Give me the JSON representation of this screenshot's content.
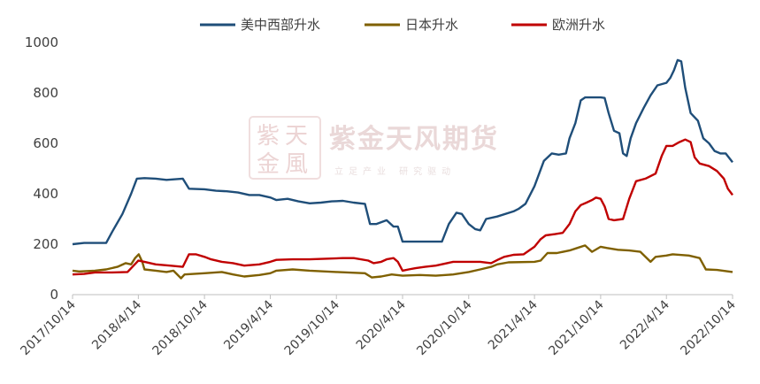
{
  "watermark": {
    "name": "紫金天风期货",
    "tagline": "立足产业 研究驱动",
    "logo_chars": [
      "紫",
      "天",
      "金",
      "風"
    ]
  },
  "chart_data": {
    "type": "line",
    "title": "",
    "xlabel": "",
    "ylabel": "",
    "ylim": [
      0,
      1000
    ],
    "yticks": [
      0,
      200,
      400,
      600,
      800,
      1000
    ],
    "xticks": [
      "2017/10/14",
      "2018/4/14",
      "2018/10/14",
      "2019/4/14",
      "2019/10/14",
      "2020/4/14",
      "2020/10/14",
      "2021/4/14",
      "2021/10/14",
      "2022/4/14",
      "2022/10/14"
    ],
    "legend_position": "top",
    "grid": false,
    "series": [
      {
        "name": "美中西部升水",
        "color": "#1f4e79",
        "points": [
          [
            "2017/10/14",
            200
          ],
          [
            "2017/11/15",
            205
          ],
          [
            "2018/1/15",
            205
          ],
          [
            "2018/2/1",
            250
          ],
          [
            "2018/3/1",
            320
          ],
          [
            "2018/3/25",
            400
          ],
          [
            "2018/4/10",
            460
          ],
          [
            "2018/5/1",
            462
          ],
          [
            "2018/6/1",
            460
          ],
          [
            "2018/7/1",
            455
          ],
          [
            "2018/8/15",
            460
          ],
          [
            "2018/9/1",
            420
          ],
          [
            "2018/10/14",
            418
          ],
          [
            "2018/11/15",
            412
          ],
          [
            "2018/12/15",
            410
          ],
          [
            "2019/1/15",
            405
          ],
          [
            "2019/2/15",
            395
          ],
          [
            "2019/3/15",
            395
          ],
          [
            "2019/4/15",
            385
          ],
          [
            "2019/5/1",
            375
          ],
          [
            "2019/6/1",
            380
          ],
          [
            "2019/7/1",
            370
          ],
          [
            "2019/8/1",
            362
          ],
          [
            "2019/9/1",
            365
          ],
          [
            "2019/10/1",
            370
          ],
          [
            "2019/11/1",
            372
          ],
          [
            "2019/12/1",
            365
          ],
          [
            "2020/1/1",
            360
          ],
          [
            "2020/1/15",
            280
          ],
          [
            "2020/2/1",
            280
          ],
          [
            "2020/3/1",
            295
          ],
          [
            "2020/3/20",
            270
          ],
          [
            "2020/4/1",
            270
          ],
          [
            "2020/4/14",
            210
          ],
          [
            "2020/5/1",
            210
          ],
          [
            "2020/8/1",
            210
          ],
          [
            "2020/8/20",
            280
          ],
          [
            "2020/9/10",
            325
          ],
          [
            "2020/9/25",
            320
          ],
          [
            "2020/10/14",
            280
          ],
          [
            "2020/11/1",
            260
          ],
          [
            "2020/11/15",
            255
          ],
          [
            "2020/12/1",
            300
          ],
          [
            "2021/1/1",
            310
          ],
          [
            "2021/2/15",
            330
          ],
          [
            "2021/3/1",
            340
          ],
          [
            "2021/3/20",
            360
          ],
          [
            "2021/4/14",
            430
          ],
          [
            "2021/5/10",
            530
          ],
          [
            "2021/6/1",
            560
          ],
          [
            "2021/6/20",
            555
          ],
          [
            "2021/7/10",
            560
          ],
          [
            "2021/7/20",
            620
          ],
          [
            "2021/8/5",
            680
          ],
          [
            "2021/8/20",
            770
          ],
          [
            "2021/9/1",
            782
          ],
          [
            "2021/9/15",
            782
          ],
          [
            "2021/10/14",
            782
          ],
          [
            "2021/10/25",
            780
          ],
          [
            "2021/11/5",
            720
          ],
          [
            "2021/11/20",
            650
          ],
          [
            "2021/12/5",
            640
          ],
          [
            "2021/12/15",
            560
          ],
          [
            "2021/12/25",
            550
          ],
          [
            "2022/1/5",
            620
          ],
          [
            "2022/1/20",
            680
          ],
          [
            "2022/2/10",
            740
          ],
          [
            "2022/3/1",
            790
          ],
          [
            "2022/3/20",
            830
          ],
          [
            "2022/4/14",
            840
          ],
          [
            "2022/4/25",
            860
          ],
          [
            "2022/5/5",
            890
          ],
          [
            "2022/5/15",
            930
          ],
          [
            "2022/5/25",
            925
          ],
          [
            "2022/6/5",
            820
          ],
          [
            "2022/6/20",
            720
          ],
          [
            "2022/7/10",
            690
          ],
          [
            "2022/7/25",
            620
          ],
          [
            "2022/8/10",
            600
          ],
          [
            "2022/8/25",
            570
          ],
          [
            "2022/9/10",
            560
          ],
          [
            "2022/9/25",
            560
          ],
          [
            "2022/10/14",
            525
          ]
        ]
      },
      {
        "name": "日本升水",
        "color": "#7f6000",
        "points": [
          [
            "2017/10/14",
            95
          ],
          [
            "2017/11/1",
            92
          ],
          [
            "2017/12/15",
            95
          ],
          [
            "2018/1/15",
            100
          ],
          [
            "2018/2/15",
            110
          ],
          [
            "2018/3/10",
            125
          ],
          [
            "2018/3/25",
            120
          ],
          [
            "2018/4/5",
            145
          ],
          [
            "2018/4/15",
            160
          ],
          [
            "2018/4/25",
            130
          ],
          [
            "2018/5/1",
            100
          ],
          [
            "2018/6/1",
            95
          ],
          [
            "2018/7/1",
            90
          ],
          [
            "2018/7/20",
            95
          ],
          [
            "2018/8/10",
            65
          ],
          [
            "2018/8/20",
            80
          ],
          [
            "2018/10/14",
            85
          ],
          [
            "2018/12/1",
            90
          ],
          [
            "2019/1/1",
            80
          ],
          [
            "2019/2/1",
            72
          ],
          [
            "2019/3/15",
            78
          ],
          [
            "2019/4/14",
            85
          ],
          [
            "2019/5/1",
            95
          ],
          [
            "2019/6/15",
            100
          ],
          [
            "2019/8/1",
            95
          ],
          [
            "2019/10/14",
            90
          ],
          [
            "2020/1/1",
            85
          ],
          [
            "2020/1/20",
            68
          ],
          [
            "2020/2/15",
            72
          ],
          [
            "2020/3/15",
            80
          ],
          [
            "2020/4/14",
            75
          ],
          [
            "2020/6/1",
            78
          ],
          [
            "2020/7/15",
            75
          ],
          [
            "2020/9/1",
            80
          ],
          [
            "2020/10/14",
            90
          ],
          [
            "2020/11/15",
            100
          ],
          [
            "2020/12/15",
            110
          ],
          [
            "2021/1/1",
            120
          ],
          [
            "2021/2/1",
            128
          ],
          [
            "2021/4/14",
            130
          ],
          [
            "2021/5/1",
            135
          ],
          [
            "2021/5/20",
            165
          ],
          [
            "2021/6/15",
            165
          ],
          [
            "2021/7/20",
            175
          ],
          [
            "2021/8/10",
            185
          ],
          [
            "2021/9/1",
            195
          ],
          [
            "2021/9/20",
            170
          ],
          [
            "2021/10/14",
            190
          ],
          [
            "2021/11/1",
            185
          ],
          [
            "2021/12/1",
            178
          ],
          [
            "2022/1/1",
            175
          ],
          [
            "2022/2/1",
            170
          ],
          [
            "2022/3/1",
            130
          ],
          [
            "2022/3/15",
            150
          ],
          [
            "2022/4/14",
            155
          ],
          [
            "2022/5/1",
            160
          ],
          [
            "2022/6/15",
            155
          ],
          [
            "2022/7/15",
            145
          ],
          [
            "2022/8/1",
            100
          ],
          [
            "2022/9/1",
            98
          ],
          [
            "2022/10/14",
            90
          ]
        ]
      },
      {
        "name": "欧洲升水",
        "color": "#c00000",
        "points": [
          [
            "2017/10/14",
            80
          ],
          [
            "2017/11/15",
            82
          ],
          [
            "2017/12/15",
            88
          ],
          [
            "2018/2/1",
            88
          ],
          [
            "2018/3/15",
            90
          ],
          [
            "2018/4/1",
            115
          ],
          [
            "2018/4/14",
            135
          ],
          [
            "2018/5/1",
            130
          ],
          [
            "2018/6/1",
            120
          ],
          [
            "2018/7/10",
            115
          ],
          [
            "2018/8/15",
            110
          ],
          [
            "2018/9/1",
            160
          ],
          [
            "2018/9/20",
            160
          ],
          [
            "2018/10/14",
            150
          ],
          [
            "2018/11/1",
            140
          ],
          [
            "2018/12/1",
            130
          ],
          [
            "2019/1/1",
            125
          ],
          [
            "2019/2/1",
            115
          ],
          [
            "2019/3/15",
            120
          ],
          [
            "2019/4/14",
            130
          ],
          [
            "2019/5/1",
            138
          ],
          [
            "2019/6/15",
            140
          ],
          [
            "2019/8/1",
            140
          ],
          [
            "2019/10/1",
            143
          ],
          [
            "2019/11/1",
            145
          ],
          [
            "2019/12/1",
            145
          ],
          [
            "2020/1/10",
            135
          ],
          [
            "2020/1/25",
            125
          ],
          [
            "2020/2/15",
            130
          ],
          [
            "2020/3/1",
            140
          ],
          [
            "2020/3/20",
            145
          ],
          [
            "2020/4/1",
            130
          ],
          [
            "2020/4/14",
            95
          ],
          [
            "2020/5/1",
            100
          ],
          [
            "2020/5/20",
            105
          ],
          [
            "2020/6/15",
            110
          ],
          [
            "2020/7/15",
            115
          ],
          [
            "2020/8/15",
            125
          ],
          [
            "2020/9/1",
            130
          ],
          [
            "2020/10/14",
            130
          ],
          [
            "2020/11/15",
            130
          ],
          [
            "2020/12/15",
            125
          ],
          [
            "2021/1/5",
            140
          ],
          [
            "2021/1/20",
            150
          ],
          [
            "2021/2/15",
            158
          ],
          [
            "2021/3/15",
            160
          ],
          [
            "2021/4/14",
            190
          ],
          [
            "2021/5/1",
            220
          ],
          [
            "2021/5/15",
            235
          ],
          [
            "2021/6/10",
            240
          ],
          [
            "2021/7/1",
            245
          ],
          [
            "2021/7/20",
            280
          ],
          [
            "2021/8/5",
            330
          ],
          [
            "2021/8/20",
            355
          ],
          [
            "2021/9/5",
            365
          ],
          [
            "2021/9/20",
            375
          ],
          [
            "2021/10/1",
            385
          ],
          [
            "2021/10/14",
            380
          ],
          [
            "2021/10/25",
            350
          ],
          [
            "2021/11/5",
            300
          ],
          [
            "2021/11/20",
            295
          ],
          [
            "2021/12/15",
            300
          ],
          [
            "2022/1/1",
            380
          ],
          [
            "2022/1/20",
            450
          ],
          [
            "2022/2/15",
            460
          ],
          [
            "2022/3/15",
            480
          ],
          [
            "2022/4/1",
            550
          ],
          [
            "2022/4/14",
            590
          ],
          [
            "2022/5/1",
            590
          ],
          [
            "2022/5/20",
            605
          ],
          [
            "2022/6/5",
            615
          ],
          [
            "2022/6/20",
            605
          ],
          [
            "2022/7/1",
            545
          ],
          [
            "2022/7/15",
            520
          ],
          [
            "2022/8/10",
            510
          ],
          [
            "2022/9/1",
            490
          ],
          [
            "2022/9/20",
            460
          ],
          [
            "2022/10/1",
            420
          ],
          [
            "2022/10/14",
            395
          ]
        ]
      }
    ]
  }
}
